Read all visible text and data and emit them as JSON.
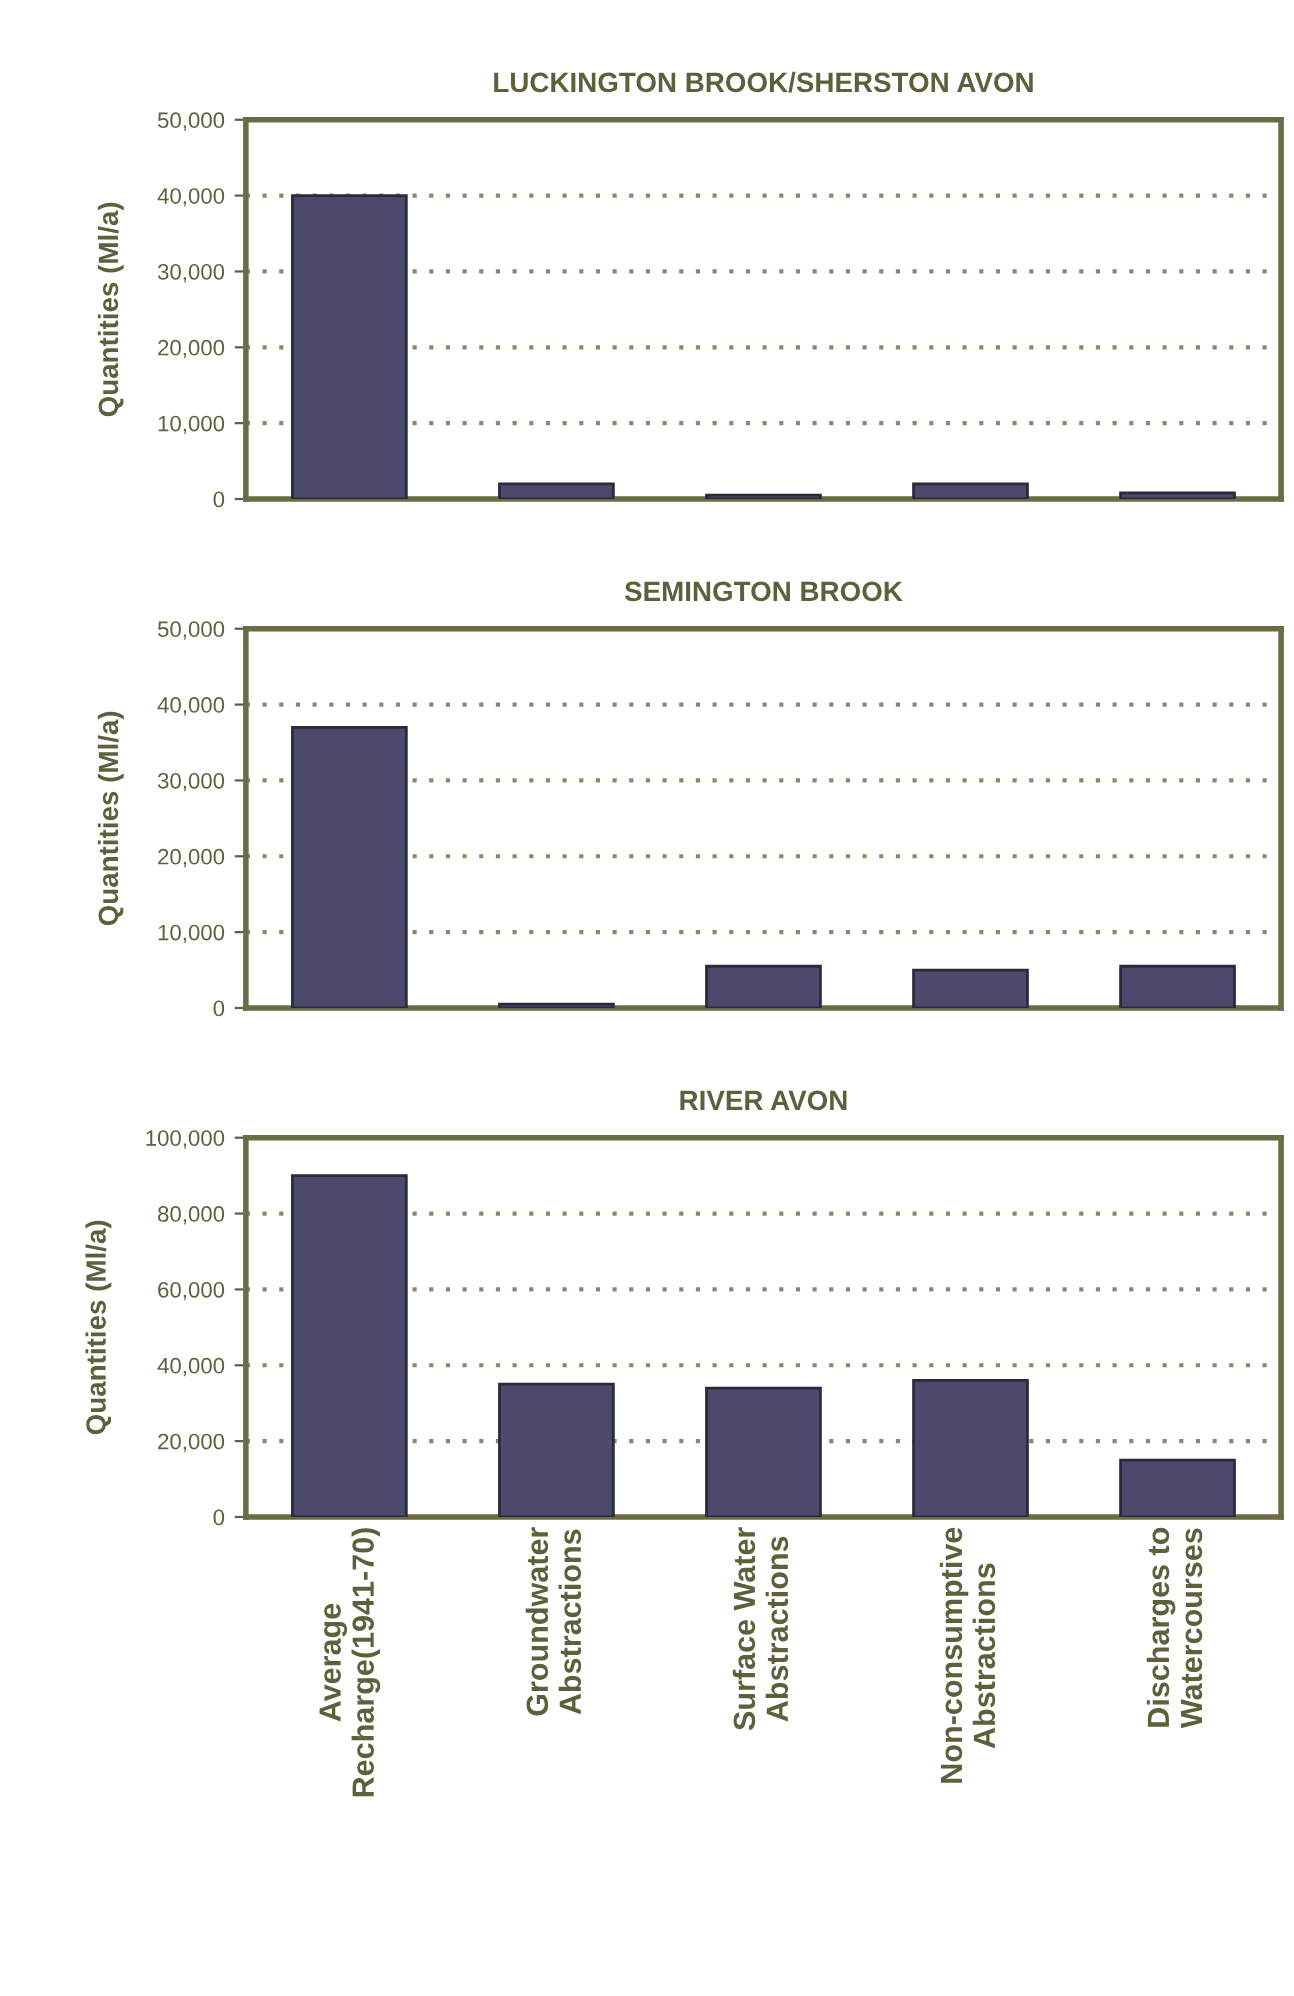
{
  "chart_data": [
    {
      "type": "bar",
      "title": "LUCKINGTON BROOK/SHERSTON AVON",
      "ylabel": "Quantities (Ml/a)",
      "categories": [
        null,
        null,
        null,
        null,
        null
      ],
      "values": [
        40000,
        2000,
        500,
        2000,
        800
      ],
      "color": "#4b4a6c",
      "ylim": [
        0,
        50000
      ],
      "yticks": [
        {
          "value": 0,
          "label": "0"
        },
        {
          "value": 10000,
          "label": "10,000"
        },
        {
          "value": 20000,
          "label": "20,000"
        },
        {
          "value": 30000,
          "label": "30,000"
        },
        {
          "value": 40000,
          "label": "40,000"
        },
        {
          "value": 50000,
          "label": "50,000"
        }
      ],
      "grid": "y",
      "tick_labels": "y"
    },
    {
      "type": "bar",
      "title": "SEMINGTON BROOK",
      "ylabel": "Quantities (Ml/a)",
      "categories": [
        null,
        null,
        null,
        null,
        null
      ],
      "values": [
        37000,
        500,
        5500,
        5000,
        5500
      ],
      "color": "#4b4a6c",
      "ylim": [
        0,
        50000
      ],
      "yticks": [
        {
          "value": 0,
          "label": "0"
        },
        {
          "value": 10000,
          "label": "10,000"
        },
        {
          "value": 20000,
          "label": "20,000"
        },
        {
          "value": 30000,
          "label": "30,000"
        },
        {
          "value": 40000,
          "label": "40,000"
        },
        {
          "value": 50000,
          "label": "50,000"
        }
      ],
      "grid": "y",
      "tick_labels": "y"
    },
    {
      "type": "bar",
      "title": "RIVER AVON",
      "ylabel": "Quantities (Ml/a)",
      "categories": [
        "Average\nRecharge(1941-70)",
        "Groundwater\nAbstractions",
        "Surface Water\nAbstractions",
        "Non-consumptive\nAbstractions",
        "Discharges to\nWatercourses"
      ],
      "values": [
        90000,
        35000,
        34000,
        36000,
        15000
      ],
      "color": "#4b4a6c",
      "ylim": [
        0,
        100000
      ],
      "yticks": [
        {
          "value": 0,
          "label": "0"
        },
        {
          "value": 20000,
          "label": "20,000"
        },
        {
          "value": 40000,
          "label": "40,000"
        },
        {
          "value": 60000,
          "label": "60,000"
        },
        {
          "value": 80000,
          "label": "80,000"
        },
        {
          "value": 100000,
          "label": "100,000"
        }
      ],
      "grid": "y"
    }
  ]
}
